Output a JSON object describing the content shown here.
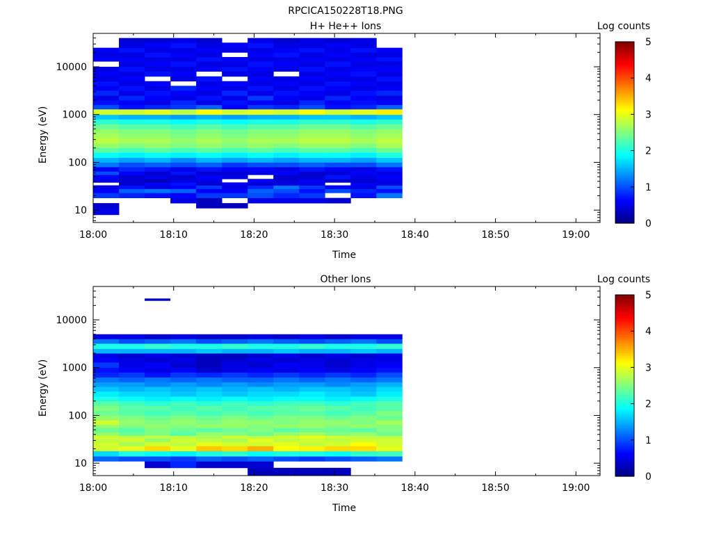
{
  "figure": {
    "title": "RPCICA150228T18.PNG"
  },
  "chart_data": [
    {
      "type": "heatmap",
      "title": "H+ He++ Ions",
      "xlabel": "Time",
      "ylabel": "Energy (eV)",
      "x_ticks": [
        "18:00",
        "18:10",
        "18:20",
        "18:30",
        "18:40",
        "18:50",
        "19:00"
      ],
      "x_tick_minutes": [
        0,
        10,
        20,
        30,
        40,
        50,
        60
      ],
      "xlim_minutes": [
        0,
        63
      ],
      "y_scale": "log",
      "ylim": [
        5.5,
        50000
      ],
      "y_ticks": [
        "10",
        "100",
        "1000",
        "10000"
      ],
      "y_tick_values": [
        10,
        100,
        1000,
        10000
      ],
      "colorbar": {
        "label": "Log counts",
        "range": [
          0,
          5
        ],
        "ticks": [
          "0",
          "1",
          "2",
          "3",
          "4",
          "5"
        ],
        "colormap": "jet"
      },
      "time_bins_minutes": [
        0,
        3.2,
        6.4,
        9.6,
        12.8,
        16.0,
        19.2,
        22.4,
        25.6,
        28.8,
        32.0,
        35.2,
        38.4
      ],
      "energy_bins_eV": [
        8,
        11,
        14,
        18,
        23,
        28,
        33,
        38,
        45,
        55,
        65,
        80,
        100,
        125,
        160,
        200,
        250,
        320,
        400,
        500,
        630,
        800,
        1000,
        1300,
        1600,
        2000,
        2500,
        3200,
        4000,
        5000,
        6300,
        8000,
        10000,
        13000,
        16000,
        20000,
        25000,
        32000,
        40000
      ],
      "log_counts": [
        [
          0.5,
          null,
          null,
          null,
          null,
          null,
          null,
          null,
          null,
          null,
          null,
          null
        ],
        [
          0.4,
          null,
          null,
          null,
          0.3,
          0.3,
          null,
          null,
          null,
          null,
          null,
          null
        ],
        [
          null,
          null,
          null,
          0.5,
          0.3,
          null,
          0.5,
          0.5,
          0.5,
          0.4,
          null,
          null
        ],
        [
          0.9,
          0.8,
          0.7,
          0.6,
          0.9,
          0.9,
          1.0,
          0.8,
          0.9,
          null,
          0.7,
          1.2
        ],
        [
          0.6,
          1.1,
          1.2,
          1.1,
          0.6,
          0.6,
          1.1,
          1.0,
          0.7,
          1.0,
          0.8,
          0.7
        ],
        [
          0.5,
          0.7,
          0.5,
          0.6,
          0.9,
          0.5,
          0.8,
          1.2,
          0.9,
          0.6,
          0.5,
          1.0
        ],
        [
          null,
          0.4,
          0.6,
          0.7,
          0.4,
          0.6,
          0.4,
          0.5,
          0.5,
          null,
          0.6,
          0.5
        ],
        [
          0.5,
          0.4,
          0.3,
          0.5,
          0.5,
          null,
          0.6,
          0.4,
          0.6,
          0.4,
          0.4,
          0.5
        ],
        [
          0.6,
          0.4,
          0.5,
          0.4,
          0.6,
          0.5,
          null,
          0.4,
          0.4,
          0.7,
          0.5,
          0.6
        ],
        [
          1.0,
          0.6,
          0.4,
          0.7,
          0.4,
          0.4,
          0.5,
          0.6,
          0.4,
          0.4,
          0.6,
          0.5
        ],
        [
          0.6,
          0.8,
          0.7,
          0.5,
          0.7,
          0.6,
          0.6,
          0.5,
          0.7,
          0.6,
          0.5,
          0.7
        ],
        [
          1.2,
          1.0,
          1.1,
          1.0,
          1.1,
          0.9,
          1.0,
          1.0,
          1.1,
          1.0,
          1.0,
          1.2
        ],
        [
          1.5,
          1.4,
          1.5,
          1.3,
          1.5,
          1.4,
          1.5,
          1.4,
          1.5,
          1.5,
          1.4,
          1.6
        ],
        [
          1.9,
          1.8,
          1.9,
          1.8,
          1.9,
          1.8,
          1.9,
          1.8,
          1.9,
          1.9,
          1.8,
          2.0
        ],
        [
          2.3,
          2.2,
          2.3,
          2.2,
          2.3,
          2.2,
          2.3,
          2.2,
          2.3,
          2.3,
          2.2,
          2.4
        ],
        [
          2.6,
          2.5,
          2.6,
          2.5,
          2.6,
          2.5,
          2.6,
          2.5,
          2.6,
          2.6,
          2.5,
          2.7
        ],
        [
          2.8,
          2.7,
          2.7,
          2.6,
          2.7,
          2.6,
          2.7,
          2.7,
          2.8,
          2.8,
          2.7,
          2.8
        ],
        [
          2.7,
          2.6,
          2.6,
          2.5,
          2.6,
          2.5,
          2.6,
          2.6,
          2.7,
          2.7,
          2.6,
          2.7
        ],
        [
          2.6,
          2.5,
          2.5,
          2.4,
          2.5,
          2.4,
          2.5,
          2.5,
          2.6,
          2.6,
          2.5,
          2.6
        ],
        [
          2.4,
          2.3,
          2.3,
          2.2,
          2.3,
          2.2,
          2.3,
          2.3,
          2.4,
          2.4,
          2.3,
          2.4
        ],
        [
          2.1,
          2.0,
          2.0,
          1.9,
          2.0,
          1.9,
          2.0,
          2.0,
          2.1,
          2.1,
          2.0,
          2.1
        ],
        [
          1.6,
          1.5,
          1.5,
          1.4,
          1.5,
          1.4,
          1.5,
          1.5,
          1.6,
          1.6,
          1.5,
          1.6
        ],
        [
          2.9,
          2.9,
          3.0,
          2.8,
          3.1,
          2.9,
          3.0,
          2.9,
          3.1,
          2.9,
          3.0,
          3.2
        ],
        [
          1.0,
          0.7,
          0.8,
          0.9,
          1.1,
          0.6,
          0.9,
          0.8,
          1.0,
          0.7,
          0.8,
          1.1
        ],
        [
          0.7,
          0.6,
          0.5,
          0.8,
          0.5,
          0.7,
          0.6,
          0.5,
          0.8,
          0.6,
          0.7,
          0.6
        ],
        [
          0.5,
          0.8,
          0.6,
          0.5,
          0.7,
          0.5,
          0.9,
          0.6,
          0.5,
          0.8,
          0.6,
          0.5
        ],
        [
          0.8,
          0.5,
          0.7,
          0.6,
          0.5,
          0.8,
          0.5,
          0.7,
          0.6,
          0.5,
          0.7,
          0.8
        ],
        [
          0.6,
          0.7,
          0.5,
          0.8,
          0.6,
          0.5,
          0.7,
          0.5,
          0.7,
          0.6,
          0.5,
          0.6
        ],
        [
          0.7,
          0.5,
          0.6,
          null,
          0.5,
          0.6,
          0.5,
          0.6,
          0.5,
          0.7,
          0.6,
          0.5
        ],
        [
          0.5,
          0.6,
          null,
          0.5,
          0.7,
          null,
          0.6,
          0.5,
          0.6,
          0.5,
          0.5,
          0.7
        ],
        [
          0.6,
          0.5,
          0.7,
          0.6,
          null,
          0.5,
          0.5,
          null,
          0.5,
          0.6,
          0.7,
          0.5
        ],
        [
          0.5,
          0.7,
          0.5,
          0.5,
          0.6,
          0.7,
          0.6,
          0.5,
          0.7,
          0.5,
          0.6,
          0.6
        ],
        [
          null,
          0.5,
          0.6,
          0.7,
          0.5,
          0.5,
          0.7,
          0.6,
          0.5,
          0.7,
          0.5,
          0.5
        ],
        [
          0.6,
          0.6,
          0.5,
          0.5,
          0.7,
          0.6,
          0.5,
          0.5,
          0.6,
          0.5,
          0.6,
          0.7
        ],
        [
          0.5,
          0.5,
          0.7,
          0.6,
          0.5,
          null,
          0.6,
          0.7,
          0.5,
          0.6,
          0.5,
          0.5
        ],
        [
          0.6,
          0.7,
          0.5,
          0.5,
          0.6,
          0.5,
          0.5,
          0.6,
          0.7,
          0.5,
          0.7,
          0.6
        ],
        [
          null,
          0.5,
          0.6,
          0.7,
          0.5,
          0.6,
          0.7,
          0.5,
          0.5,
          0.6,
          0.5,
          null
        ],
        [
          null,
          0.4,
          0.4,
          0.5,
          0.4,
          null,
          0.5,
          0.4,
          0.5,
          0.4,
          0.5,
          null
        ]
      ]
    },
    {
      "type": "heatmap",
      "title": "Other Ions",
      "xlabel": "Time",
      "ylabel": "Energy (eV)",
      "x_ticks": [
        "18:00",
        "18:10",
        "18:20",
        "18:30",
        "18:40",
        "18:50",
        "19:00"
      ],
      "x_tick_minutes": [
        0,
        10,
        20,
        30,
        40,
        50,
        60
      ],
      "xlim_minutes": [
        0,
        63
      ],
      "y_scale": "log",
      "ylim": [
        5.5,
        50000
      ],
      "y_ticks": [
        "10",
        "100",
        "1000",
        "10000"
      ],
      "y_tick_values": [
        10,
        100,
        1000,
        10000
      ],
      "colorbar": {
        "label": "Log counts",
        "range": [
          0,
          5
        ],
        "ticks": [
          "0",
          "1",
          "2",
          "3",
          "4",
          "5"
        ],
        "colormap": "jet"
      },
      "time_bins_minutes": [
        0,
        3.2,
        6.4,
        9.6,
        12.8,
        16.0,
        19.2,
        22.4,
        25.6,
        28.8,
        32.0,
        35.2,
        38.4
      ],
      "energy_bins_eV": [
        5.5,
        8,
        11,
        14,
        18,
        23,
        28,
        33,
        38,
        45,
        55,
        65,
        80,
        100,
        125,
        160,
        200,
        250,
        320,
        400,
        500,
        630,
        800,
        1000,
        1300,
        1600,
        2000,
        2500,
        3200,
        4000,
        5000
      ],
      "log_counts": [
        [
          null,
          null,
          null,
          null,
          null,
          null,
          0.3,
          0.3,
          0.3,
          0.3,
          null,
          null
        ],
        [
          null,
          null,
          0.4,
          0.8,
          0.4,
          0.4,
          0.4,
          null,
          null,
          null,
          null,
          null
        ],
        [
          1.1,
          1.0,
          1.0,
          0.9,
          1.1,
          1.0,
          1.1,
          1.0,
          0.9,
          1.0,
          1.1,
          1.2
        ],
        [
          1.7,
          2.0,
          1.9,
          1.8,
          2.0,
          2.1,
          1.9,
          2.0,
          2.0,
          1.9,
          2.1,
          2.2
        ],
        [
          2.9,
          3.0,
          3.3,
          3.0,
          3.4,
          3.3,
          3.5,
          3.1,
          3.2,
          3.3,
          3.3,
          3.0
        ],
        [
          2.9,
          2.7,
          2.9,
          2.8,
          3.0,
          2.9,
          2.9,
          3.0,
          2.8,
          2.9,
          3.1,
          2.9
        ],
        [
          2.8,
          2.9,
          2.6,
          2.9,
          2.8,
          2.7,
          3.0,
          2.8,
          2.9,
          2.8,
          2.9,
          2.9
        ],
        [
          2.9,
          2.8,
          2.8,
          2.8,
          2.7,
          2.9,
          2.8,
          2.9,
          3.0,
          2.9,
          2.8,
          2.8
        ],
        [
          2.6,
          2.4,
          2.5,
          2.3,
          2.6,
          2.5,
          2.4,
          2.6,
          2.7,
          2.5,
          2.6,
          2.4
        ],
        [
          2.4,
          2.3,
          2.5,
          2.4,
          2.3,
          2.4,
          2.5,
          2.3,
          2.4,
          2.4,
          2.3,
          2.5
        ],
        [
          2.6,
          2.5,
          2.6,
          2.5,
          2.6,
          2.6,
          2.5,
          2.6,
          2.6,
          2.5,
          2.6,
          2.5
        ],
        [
          2.9,
          2.6,
          2.5,
          2.6,
          2.5,
          2.6,
          2.6,
          2.5,
          2.6,
          2.6,
          2.5,
          2.7
        ],
        [
          2.6,
          2.5,
          2.4,
          2.5,
          2.4,
          2.5,
          2.4,
          2.5,
          2.5,
          2.4,
          2.5,
          2.4
        ],
        [
          2.4,
          2.3,
          2.2,
          2.3,
          2.2,
          2.3,
          2.2,
          2.3,
          2.3,
          2.2,
          2.3,
          2.5
        ],
        [
          2.5,
          2.3,
          2.3,
          2.2,
          2.3,
          2.2,
          2.3,
          2.3,
          2.4,
          2.3,
          2.2,
          2.3
        ],
        [
          2.3,
          2.2,
          2.1,
          2.2,
          2.1,
          2.2,
          2.1,
          2.2,
          2.2,
          2.1,
          2.2,
          2.3
        ],
        [
          2.0,
          1.9,
          1.8,
          1.9,
          1.8,
          1.9,
          1.8,
          1.9,
          1.9,
          1.8,
          1.9,
          2.0
        ],
        [
          1.8,
          1.7,
          1.7,
          1.6,
          1.7,
          1.6,
          1.7,
          1.7,
          1.8,
          1.7,
          1.6,
          1.8
        ],
        [
          1.6,
          1.5,
          1.6,
          1.5,
          1.6,
          1.5,
          1.6,
          1.5,
          1.6,
          1.6,
          1.5,
          1.7
        ],
        [
          1.4,
          1.4,
          1.3,
          1.4,
          1.3,
          1.4,
          1.3,
          1.4,
          1.4,
          1.3,
          1.4,
          1.5
        ],
        [
          1.2,
          1.1,
          1.2,
          1.1,
          1.2,
          1.1,
          1.1,
          1.2,
          1.1,
          1.2,
          1.1,
          1.2
        ],
        [
          0.8,
          0.9,
          0.7,
          0.9,
          0.8,
          0.9,
          0.8,
          0.9,
          0.8,
          0.9,
          0.8,
          1.0
        ],
        [
          0.7,
          0.6,
          0.5,
          0.6,
          0.4,
          0.5,
          0.6,
          0.5,
          0.6,
          0.5,
          0.6,
          0.7
        ],
        [
          0.9,
          0.5,
          0.6,
          0.4,
          0.3,
          0.5,
          0.4,
          0.6,
          0.5,
          0.4,
          0.5,
          0.6
        ],
        [
          0.6,
          0.5,
          0.4,
          0.5,
          0.3,
          0.4,
          0.5,
          0.4,
          0.5,
          0.4,
          0.5,
          0.5
        ],
        [
          0.5,
          0.4,
          0.5,
          0.4,
          0.3,
          0.3,
          0.4,
          0.5,
          0.4,
          0.5,
          0.4,
          0.5
        ],
        [
          1.5,
          1.5,
          1.5,
          1.5,
          1.6,
          1.5,
          1.5,
          1.6,
          1.5,
          1.5,
          1.6,
          1.5
        ],
        [
          2.0,
          2.0,
          2.1,
          2.0,
          2.0,
          2.1,
          2.0,
          2.0,
          2.1,
          2.0,
          2.0,
          2.1
        ],
        [
          1.2,
          1.0,
          1.1,
          1.2,
          1.0,
          1.1,
          1.2,
          1.1,
          1.0,
          1.1,
          1.2,
          1.0
        ],
        [
          0.5,
          0.5,
          0.4,
          0.5,
          0.4,
          0.4,
          0.5,
          0.4,
          0.5,
          0.4,
          0.5,
          0.5
        ]
      ],
      "extra_cells": [
        {
          "t0": 6.4,
          "t1": 9.6,
          "e0": 25000,
          "e1": 28000,
          "log_count": 0.4
        }
      ]
    }
  ]
}
